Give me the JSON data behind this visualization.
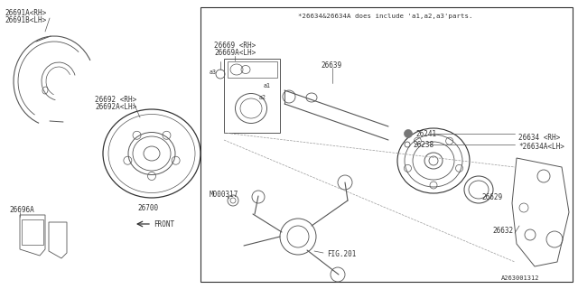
{
  "bg_color": "#ffffff",
  "line_color": "#555555",
  "dark_color": "#333333",
  "note_text": "*26634&26634A does include ’a1,a2,a3’parts.",
  "part_number": "A263001312",
  "labels": {
    "26691A_RH": "26691A<RH>",
    "26691B_LH": "26691B<LH>",
    "26692_RH": "26692 <RH>",
    "26692A_LH": "26692A<LH>",
    "26669_RH": "26669 <RH>",
    "26669A_LH": "26669A<LH>",
    "26639": "26639",
    "26241": "26241",
    "26238": "26238",
    "26634_RH": "26634 <RH>",
    "26634A_LH": "*26634A<LH>",
    "26629": "26629",
    "26632": "26632",
    "26696A": "26696A",
    "26700": "26700",
    "M000317": "M000317",
    "FIG201": "FIG.201",
    "a1": "a1",
    "a2": "a2",
    "a3": "a3",
    "FRONT": "FRONT"
  },
  "fs": 5.5,
  "fs_note": 5.5,
  "fs_small": 4.8
}
